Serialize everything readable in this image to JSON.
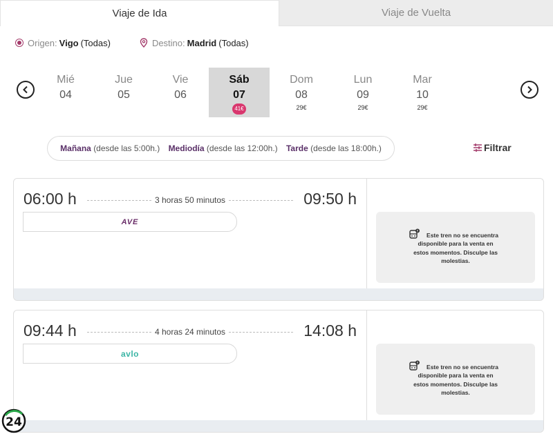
{
  "tabs": [
    {
      "label": "Viaje de Ida",
      "active": true
    },
    {
      "label": "Viaje de Vuelta",
      "active": false
    }
  ],
  "route": {
    "origin_label": "Origen:",
    "origin_value": "Vigo",
    "origin_sub": "(Todas)",
    "destination_label": "Destino:",
    "destination_value": "Madrid",
    "destination_sub": "(Todas)"
  },
  "days": [
    {
      "name": "Mié",
      "num": "04",
      "price": ""
    },
    {
      "name": "Jue",
      "num": "05",
      "price": ""
    },
    {
      "name": "Vie",
      "num": "06",
      "price": ""
    },
    {
      "name": "Sáb",
      "num": "07",
      "price": "41€",
      "selected": true
    },
    {
      "name": "Dom",
      "num": "08",
      "price": "29€"
    },
    {
      "name": "Lun",
      "num": "09",
      "price": "29€"
    },
    {
      "name": "Mar",
      "num": "10",
      "price": "29€"
    }
  ],
  "time_filter": [
    {
      "label": "Mañana",
      "detail": "(desde las 5:00h.)"
    },
    {
      "label": "Mediodía",
      "detail": "(desde las 12:00h.)"
    },
    {
      "label": "Tarde",
      "detail": "(desde las 18:00h.)"
    }
  ],
  "filter_label": "Filtrar",
  "trains": [
    {
      "departure": "06:00 h",
      "arrival": "09:50 h",
      "duration": "3 horas 50 minutos",
      "brand": "AVE",
      "unavailable": "Este tren no se encuentra disponible para la venta en estos momentos. Disculpe las molestias."
    },
    {
      "departure": "09:44 h",
      "arrival": "14:08 h",
      "duration": "4 horas 24 minutos",
      "brand": "avlo",
      "unavailable": "Este tren no se encuentra disponible para la venta en estos momentos. Disculpe las molestias."
    }
  ],
  "colors": {
    "accent": "#a33a6a",
    "badge": "#d9376e",
    "avlo": "#3bb5a5",
    "ave": "#6b2f6a"
  },
  "watermark": "24"
}
